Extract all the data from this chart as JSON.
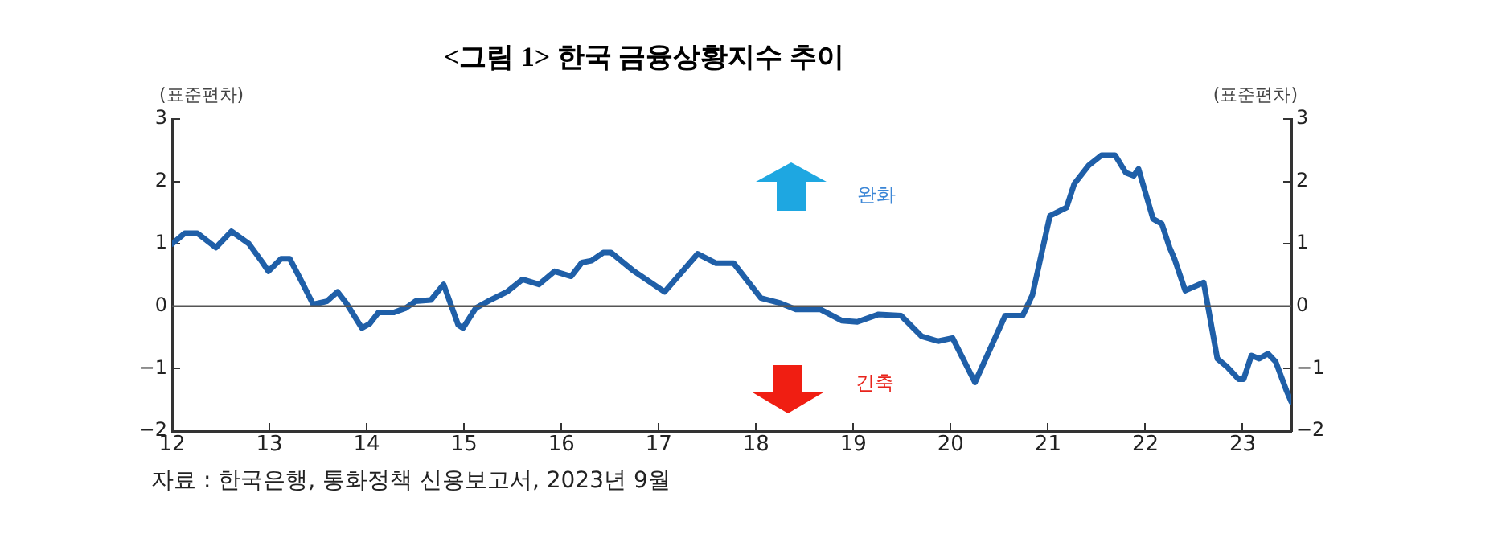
{
  "chart_data": {
    "type": "line",
    "title": "<그림 1> 한국 금융상황지수 추이",
    "ylabel": "(표준편차)",
    "y2label": "(표준편차)",
    "annotations": [
      "완화",
      "긴축",
      "자료 : 한국은행, 통화정책 신용보고서, 2023년 9월"
    ],
    "series": [
      {
        "color": "#1f5fa8",
        "x": [
          2012.0,
          2012.13,
          2012.26,
          2012.45,
          2012.61,
          2012.79,
          2012.93,
          2012.99,
          2013.12,
          2013.21,
          2013.32,
          2013.45,
          2013.59,
          2013.7,
          2013.79,
          2013.95,
          2014.03,
          2014.12,
          2014.28,
          2014.4,
          2014.5,
          2014.66,
          2014.79,
          2014.94,
          2014.99,
          2015.12,
          2015.27,
          2015.44,
          2015.6,
          2015.77,
          2015.93,
          2016.1,
          2016.21,
          2016.31,
          2016.43,
          2016.51,
          2016.73,
          2017.06,
          2017.4,
          2017.59,
          2017.77,
          2018.05,
          2018.25,
          2018.41,
          2018.66,
          2018.88,
          2019.04,
          2019.26,
          2019.49,
          2019.7,
          2019.87,
          2020.02,
          2020.25,
          2020.56,
          2020.74,
          2020.84,
          2021.02,
          2021.19,
          2021.27,
          2021.42,
          2021.55,
          2021.69,
          2021.8,
          2021.88,
          2021.93,
          2022.08,
          2022.17,
          2022.25,
          2022.3,
          2022.41,
          2022.6,
          2022.74,
          2022.84,
          2022.96,
          2023.01,
          2023.09,
          2023.17,
          2023.26,
          2023.34,
          2023.45,
          2023.5
        ],
        "values": [
          1.0,
          1.17,
          1.17,
          0.94,
          1.2,
          1.0,
          0.7,
          0.56,
          0.76,
          0.76,
          0.43,
          0.03,
          0.08,
          0.23,
          0.05,
          -0.35,
          -0.28,
          -0.1,
          -0.1,
          -0.03,
          0.08,
          0.1,
          0.35,
          -0.3,
          -0.35,
          -0.03,
          0.1,
          0.23,
          0.43,
          0.35,
          0.56,
          0.48,
          0.7,
          0.73,
          0.86,
          0.86,
          0.58,
          0.23,
          0.84,
          0.69,
          0.69,
          0.13,
          0.05,
          -0.05,
          -0.05,
          -0.23,
          -0.25,
          -0.13,
          -0.15,
          -0.48,
          -0.56,
          -0.51,
          -1.22,
          -0.15,
          -0.15,
          0.18,
          1.45,
          1.58,
          1.96,
          2.26,
          2.42,
          2.42,
          2.14,
          2.09,
          2.2,
          1.4,
          1.32,
          0.94,
          0.76,
          0.25,
          0.38,
          -0.84,
          -0.97,
          -1.17,
          -1.17,
          -0.79,
          -0.84,
          -0.76,
          -0.89,
          -1.35,
          -1.53
        ]
      }
    ],
    "xlim": [
      2012,
      2023.5
    ],
    "xticks": [
      {
        "value": 2012,
        "label": "12"
      },
      {
        "value": 2013,
        "label": "13"
      },
      {
        "value": 2014,
        "label": "14"
      },
      {
        "value": 2015,
        "label": "15"
      },
      {
        "value": 2016,
        "label": "16"
      },
      {
        "value": 2017,
        "label": "17"
      },
      {
        "value": 2018,
        "label": "18"
      },
      {
        "value": 2019,
        "label": "19"
      },
      {
        "value": 2020,
        "label": "20"
      },
      {
        "value": 2021,
        "label": "21"
      },
      {
        "value": 2022,
        "label": "22"
      },
      {
        "value": 2023,
        "label": "23"
      }
    ],
    "ylim": [
      -2,
      3
    ],
    "yticks": [
      {
        "value": -2,
        "label": "−2"
      },
      {
        "value": -1,
        "label": "−1"
      },
      0,
      1,
      2,
      3
    ],
    "y2lim": [
      -2,
      3
    ],
    "y2ticks": [
      {
        "value": -2,
        "label": "−2"
      },
      {
        "value": -1,
        "label": "−1"
      },
      0,
      1,
      2,
      3
    ],
    "ref_lines": [
      {
        "axis": "y",
        "value": 0,
        "color": "#555555"
      }
    ],
    "grid": false,
    "legend": false,
    "marker": "none",
    "line_style": "solid"
  }
}
